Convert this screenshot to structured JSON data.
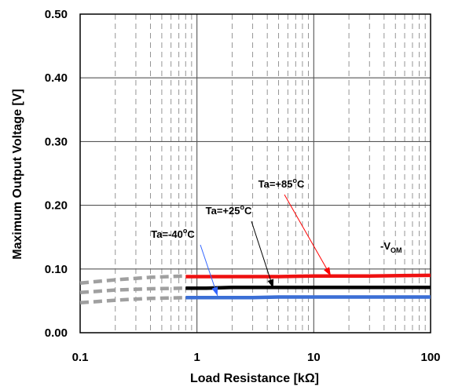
{
  "chart_data": {
    "type": "line",
    "xlabel": "Load Resistance [kΩ]",
    "ylabel": "Maximum Output Voltage [V]",
    "x_scale": "log",
    "xlim": [
      0.1,
      100
    ],
    "ylim": [
      0,
      0.5
    ],
    "x_ticks": [
      "0.1",
      "1",
      "10",
      "100"
    ],
    "y_ticks": [
      "0.00",
      "0.10",
      "0.20",
      "0.30",
      "0.40",
      "0.50"
    ],
    "grid": true,
    "annotations": [
      {
        "id": "ann85",
        "pre": "Ta=+85",
        "sup": "o",
        "post": "C",
        "target": [
          14,
          0.089
        ],
        "color": "#ff0000"
      },
      {
        "id": "ann25",
        "pre": "Ta=+25",
        "sup": "o",
        "post": "C",
        "target": [
          4.5,
          0.07
        ],
        "color": "#000000"
      },
      {
        "id": "ann40",
        "pre": "Ta=-40",
        "sup": "o",
        "post": "C",
        "target": [
          1.5,
          0.058
        ],
        "color": "#3366ff"
      }
    ],
    "vom_label": {
      "main": "-V",
      "sub": "OM"
    },
    "series": [
      {
        "label": "Ta=+85°C",
        "color": "#ee1111",
        "dashed_x": [
          0.1,
          0.2,
          0.4,
          0.8
        ],
        "dashed_y": [
          0.078,
          0.083,
          0.087,
          0.089
        ],
        "x": [
          0.8,
          2,
          5,
          10,
          30,
          100
        ],
        "y": [
          0.088,
          0.088,
          0.088,
          0.089,
          0.089,
          0.09
        ]
      },
      {
        "label": "Ta=+25°C",
        "color": "#000000",
        "dashed_x": [
          0.1,
          0.2,
          0.4,
          0.8
        ],
        "dashed_y": [
          0.063,
          0.067,
          0.069,
          0.07
        ],
        "x": [
          0.8,
          1.2,
          2,
          5,
          10,
          30,
          100
        ],
        "y": [
          0.07,
          0.07,
          0.071,
          0.071,
          0.071,
          0.071,
          0.071
        ]
      },
      {
        "label": "Ta=-40°C",
        "color": "#3b6fd6",
        "dashed_x": [
          0.1,
          0.2,
          0.4,
          0.8
        ],
        "dashed_y": [
          0.047,
          0.051,
          0.054,
          0.055
        ],
        "x": [
          0.8,
          2,
          3,
          5,
          10,
          30,
          100
        ],
        "y": [
          0.055,
          0.055,
          0.055,
          0.056,
          0.056,
          0.056,
          0.056
        ]
      }
    ]
  }
}
